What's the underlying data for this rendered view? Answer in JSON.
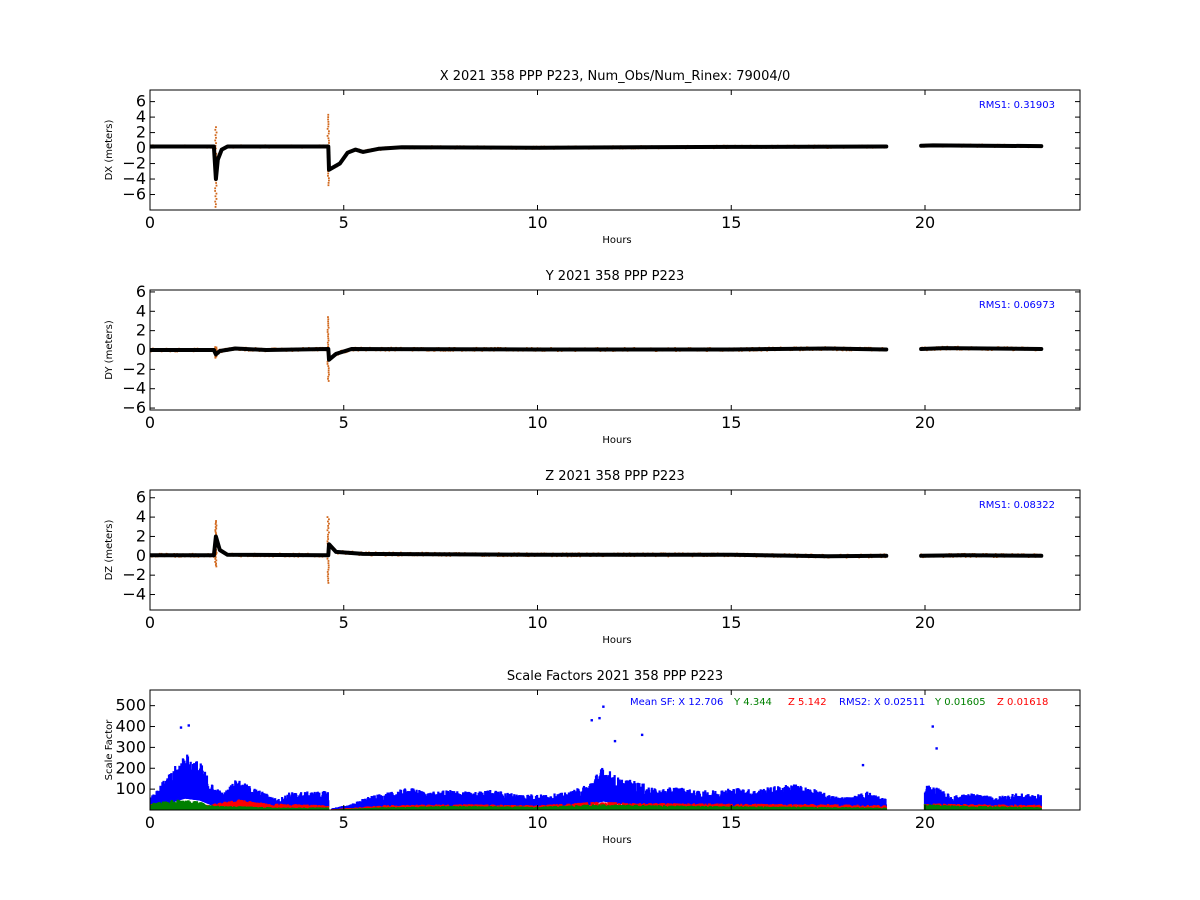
{
  "chart_data": [
    {
      "type": "scatter",
      "title": "X 2021 358 PPP  P223, Num_Obs/Num_Rinex: 79004/0",
      "xlabel": "Hours",
      "ylabel": "DX (meters)",
      "xlim": [
        0,
        24
      ],
      "ylim": [
        -8,
        7.5
      ],
      "xticks": [
        "0",
        "5",
        "10",
        "15",
        "20"
      ],
      "yticks": [
        "6",
        "4",
        "2",
        "0",
        "−2",
        "−4",
        "−6"
      ],
      "annotation": "RMS1:  0.31903",
      "colors": {
        "trace": "#000000",
        "spread": "#d2691e",
        "annotation": "#0000ff"
      },
      "series": [
        {
          "points": [
            [
              0,
              0.2
            ],
            [
              1.65,
              0.2
            ],
            [
              1.7,
              -4.0
            ],
            [
              1.75,
              -1.5
            ],
            [
              1.85,
              -0.2
            ],
            [
              2.0,
              0.2
            ],
            [
              3.5,
              0.2
            ],
            [
              4.6,
              0.2
            ],
            [
              4.62,
              -2.8
            ],
            [
              4.9,
              -2.0
            ],
            [
              5.1,
              -0.6
            ],
            [
              5.3,
              -0.2
            ],
            [
              5.5,
              -0.5
            ],
            [
              5.9,
              -0.1
            ],
            [
              6.5,
              0.1
            ],
            [
              10,
              0.05
            ],
            [
              15,
              0.15
            ],
            [
              19,
              0.2
            ]
          ]
        },
        {
          "points": [
            [
              19.9,
              0.3
            ],
            [
              20.2,
              0.35
            ],
            [
              23,
              0.25
            ]
          ]
        }
      ],
      "spikes": [
        [
          1.7,
          -7.6,
          2.7
        ],
        [
          4.6,
          -4.8,
          4.3
        ]
      ]
    },
    {
      "type": "scatter",
      "title": "Y 2021 358 PPP  P223",
      "xlabel": "Hours",
      "ylabel": "DY (meters)",
      "xlim": [
        0,
        24
      ],
      "ylim": [
        -6.2,
        6.2
      ],
      "xticks": [
        "0",
        "5",
        "10",
        "15",
        "20"
      ],
      "yticks": [
        "6",
        "4",
        "2",
        "0",
        "−2",
        "−4",
        "−6"
      ],
      "annotation": "RMS1:  0.06973",
      "colors": {
        "trace": "#000000",
        "spread": "#d2691e",
        "annotation": "#0000ff"
      },
      "series": [
        {
          "points": [
            [
              0,
              0
            ],
            [
              1.65,
              0
            ],
            [
              1.7,
              -0.45
            ],
            [
              1.8,
              -0.1
            ],
            [
              2.2,
              0.15
            ],
            [
              3,
              0
            ],
            [
              4.6,
              0.1
            ],
            [
              4.62,
              -1.0
            ],
            [
              4.8,
              -0.4
            ],
            [
              5.2,
              0.1
            ],
            [
              10,
              0.05
            ],
            [
              15,
              0.05
            ],
            [
              17.5,
              0.15
            ],
            [
              19,
              0.05
            ]
          ]
        },
        {
          "points": [
            [
              19.9,
              0.1
            ],
            [
              20.5,
              0.2
            ],
            [
              23,
              0.1
            ]
          ]
        }
      ],
      "spikes": [
        [
          1.7,
          -0.8,
          0.3
        ],
        [
          4.6,
          -3.2,
          3.4
        ]
      ]
    },
    {
      "type": "scatter",
      "title": "Z 2021 358 PPP  P223",
      "xlabel": "Hours",
      "ylabel": "DZ (meters)",
      "xlim": [
        0,
        24
      ],
      "ylim": [
        -5.6,
        6.8
      ],
      "xticks": [
        "0",
        "5",
        "10",
        "15",
        "20"
      ],
      "yticks": [
        "6",
        "4",
        "2",
        "0",
        "−2",
        "−4"
      ],
      "annotation": "RMS1:  0.08322",
      "colors": {
        "trace": "#000000",
        "spread": "#d2691e",
        "annotation": "#0000ff"
      },
      "series": [
        {
          "points": [
            [
              0,
              0.05
            ],
            [
              1.65,
              0.05
            ],
            [
              1.7,
              2.0
            ],
            [
              1.8,
              0.6
            ],
            [
              2.0,
              0.1
            ],
            [
              4.6,
              0.05
            ],
            [
              4.62,
              1.2
            ],
            [
              4.8,
              0.4
            ],
            [
              5.5,
              0.2
            ],
            [
              10,
              0.1
            ],
            [
              15,
              0.1
            ],
            [
              17.5,
              -0.05
            ],
            [
              19,
              0
            ]
          ]
        },
        {
          "points": [
            [
              19.9,
              0
            ],
            [
              21,
              0.05
            ],
            [
              23,
              0
            ]
          ]
        }
      ],
      "spikes": [
        [
          1.7,
          -1.1,
          3.6
        ],
        [
          4.6,
          -2.8,
          4.0
        ]
      ]
    },
    {
      "type": "scatter",
      "title": "Scale Factors 2021 358 PPP  P223",
      "xlabel": "Hours",
      "ylabel": "Scale Factor",
      "xlim": [
        0,
        24
      ],
      "ylim": [
        0,
        575
      ],
      "xticks": [
        "0",
        "5",
        "10",
        "15",
        "20"
      ],
      "yticks": [
        "500",
        "400",
        "300",
        "200",
        "100"
      ],
      "annotation": {
        "mean_label": "Mean SF: X  12.706",
        "mean_y": "Y   4.344",
        "mean_z": "Z   5.142",
        "rms_label": "RMS2: X  0.02511",
        "rms_y": "Y  0.01605",
        "rms_z": "Z  0.01618"
      },
      "colors": {
        "X": "#0000ff",
        "Y": "#008000",
        "Z": "#ff0000"
      },
      "series": [
        {
          "name": "X",
          "segments": [
            [
              [
                0,
                60
              ],
              [
                0.5,
                150
              ],
              [
                0.9,
                240
              ],
              [
                1.3,
                200
              ],
              [
                1.6,
                110
              ],
              [
                1.9,
                70
              ],
              [
                2.2,
                130
              ],
              [
                2.6,
                100
              ],
              [
                3.0,
                70
              ],
              [
                3.3,
                45
              ],
              [
                3.6,
                75
              ],
              [
                4.6,
                80
              ]
            ],
            [
              [
                4.7,
                8
              ],
              [
                5.2,
                25
              ],
              [
                5.6,
                55
              ],
              [
                6.2,
                75
              ],
              [
                6.7,
                95
              ],
              [
                7.2,
                75
              ],
              [
                7.8,
                85
              ],
              [
                8.3,
                75
              ],
              [
                8.8,
                85
              ],
              [
                9.4,
                70
              ],
              [
                10.2,
                65
              ],
              [
                10.8,
                75
              ],
              [
                11.3,
                110
              ],
              [
                11.7,
                185
              ],
              [
                12.1,
                135
              ],
              [
                12.6,
                120
              ],
              [
                13.1,
                85
              ],
              [
                13.6,
                100
              ],
              [
                14.1,
                80
              ],
              [
                14.6,
                85
              ],
              [
                15.1,
                95
              ],
              [
                15.6,
                85
              ],
              [
                16.1,
                100
              ],
              [
                16.6,
                110
              ],
              [
                17.1,
                90
              ],
              [
                17.6,
                60
              ],
              [
                18.1,
                55
              ],
              [
                18.5,
                80
              ],
              [
                19,
                45
              ]
            ],
            [
              [
                20.0,
                110
              ],
              [
                20.3,
                95
              ],
              [
                20.7,
                60
              ],
              [
                21.2,
                70
              ],
              [
                21.8,
                55
              ],
              [
                22.3,
                70
              ],
              [
                23,
                65
              ]
            ]
          ]
        },
        {
          "name": "Z",
          "segments": [
            [
              [
                0,
                25
              ],
              [
                1.5,
                22
              ],
              [
                1.9,
                35
              ],
              [
                2.3,
                45
              ],
              [
                3,
                28
              ],
              [
                4.6,
                20
              ]
            ],
            [
              [
                4.7,
                3
              ],
              [
                6,
                20
              ],
              [
                8,
                25
              ],
              [
                10,
                20
              ],
              [
                11.5,
                35
              ],
              [
                12.5,
                30
              ],
              [
                14,
                28
              ],
              [
                16,
                26
              ],
              [
                18,
                24
              ],
              [
                19,
                20
              ]
            ],
            [
              [
                20,
                30
              ],
              [
                21,
                25
              ],
              [
                23,
                22
              ]
            ]
          ]
        },
        {
          "name": "Y",
          "segments": [
            [
              [
                0,
                30
              ],
              [
                0.6,
                45
              ],
              [
                1.2,
                38
              ],
              [
                1.7,
                18
              ],
              [
                2.5,
                15
              ],
              [
                3.5,
                10
              ],
              [
                4.6,
                12
              ]
            ],
            [
              [
                4.7,
                2
              ],
              [
                6,
                12
              ],
              [
                8,
                18
              ],
              [
                10,
                14
              ],
              [
                11.5,
                24
              ],
              [
                12.5,
                22
              ],
              [
                14,
                18
              ],
              [
                16,
                15
              ],
              [
                18,
                12
              ],
              [
                19,
                10
              ]
            ],
            [
              [
                20,
                25
              ],
              [
                21,
                18
              ],
              [
                23,
                12
              ]
            ]
          ]
        }
      ],
      "outliers": [
        [
          11.4,
          430
        ],
        [
          11.7,
          495
        ],
        [
          11.6,
          440
        ],
        [
          12.7,
          360
        ],
        [
          20.2,
          400
        ],
        [
          0.8,
          395
        ],
        [
          1.0,
          405
        ],
        [
          18.4,
          215
        ],
        [
          12.0,
          330
        ],
        [
          20.3,
          295
        ]
      ]
    }
  ]
}
